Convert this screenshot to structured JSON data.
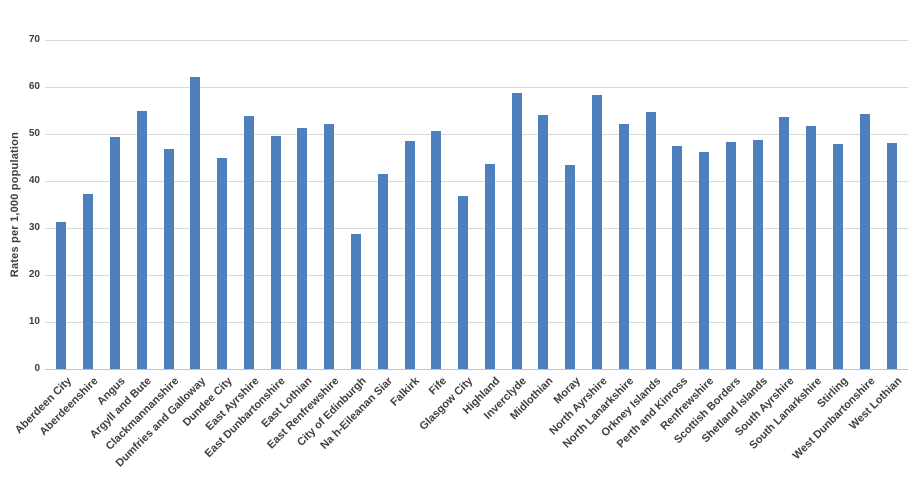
{
  "chart_data": {
    "type": "bar",
    "title": "",
    "xlabel": "",
    "ylabel": "Rates per 1,000 population",
    "ylim": [
      0,
      70
    ],
    "yticks": [
      0,
      10,
      20,
      30,
      40,
      50,
      60,
      70
    ],
    "grid": true,
    "legend_position": "none",
    "categories": [
      "Aberdeen City",
      "Aberdeenshire",
      "Angus",
      "Argyll and Bute",
      "Clackmannanshire",
      "Dumfries and Galloway",
      "Dundee City",
      "East Ayrshire",
      "East Dunbartonshire",
      "East Lothian",
      "East Renfrewshire",
      "City of Edinburgh",
      "Na h-Eileanan Siar",
      "Falkirk",
      "Fife",
      "Glasgow City",
      "Highland",
      "Inverclyde",
      "Midlothian",
      "Moray",
      "North Ayrshire",
      "North Lanarkshire",
      "Orkney Islands",
      "Perth and Kinross",
      "Renfrewshire",
      "Scottish Borders",
      "Shetland Islands",
      "South Ayrshire",
      "South Lanarkshire",
      "Stirling",
      "West Dunbartonshire",
      "West Lothian"
    ],
    "values": [
      31.3,
      37.2,
      49.3,
      54.8,
      46.8,
      62.2,
      44.9,
      53.9,
      49.6,
      51.2,
      52.2,
      28.8,
      41.5,
      48.5,
      50.7,
      36.8,
      43.6,
      58.7,
      54.1,
      43.5,
      58.2,
      52.1,
      54.7,
      47.4,
      46.1,
      48.4,
      48.7,
      53.6,
      51.6,
      47.8,
      54.3,
      48.0
    ]
  },
  "colors": {
    "bar": "#4e80bd",
    "gridline": "#d9d9d9",
    "zero_line": "#c3c3c3",
    "axis_text": "#3f3f3f",
    "background": "#ffffff"
  }
}
